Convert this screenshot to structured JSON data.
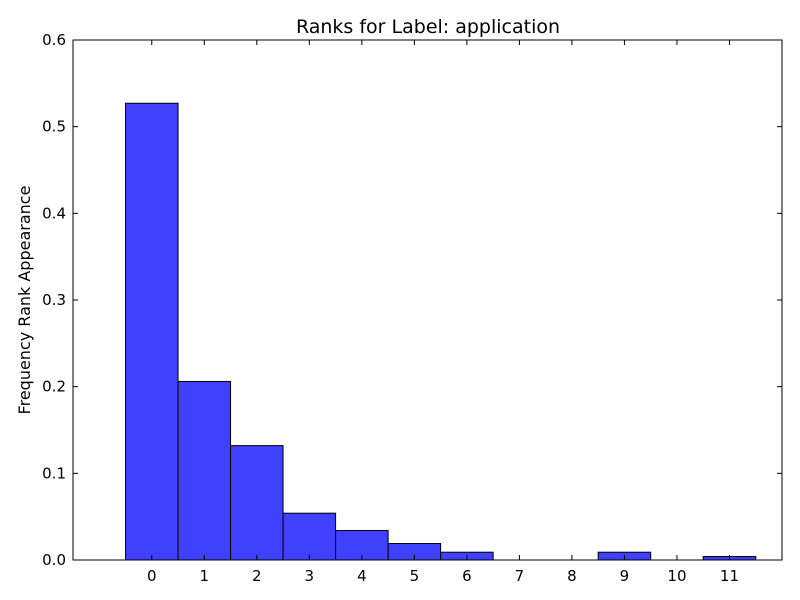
{
  "chart_data": {
    "type": "bar",
    "title": "Ranks for Label: application",
    "xlabel": "",
    "ylabel": "Frequency Rank Appearance",
    "categories": [
      "0",
      "1",
      "2",
      "3",
      "4",
      "5",
      "6",
      "7",
      "8",
      "9",
      "10",
      "11"
    ],
    "values": [
      0.527,
      0.206,
      0.132,
      0.054,
      0.034,
      0.019,
      0.009,
      0.0,
      0.0,
      0.009,
      0.0,
      0.004
    ],
    "xlim": [
      -1.5,
      12
    ],
    "ylim": [
      0,
      0.6
    ],
    "yticks": [
      "0.0",
      "0.1",
      "0.2",
      "0.3",
      "0.4",
      "0.5",
      "0.6"
    ],
    "grid": false,
    "legend": "none",
    "bar_color": "#4040ff",
    "bar_edge_color": "#000000"
  }
}
